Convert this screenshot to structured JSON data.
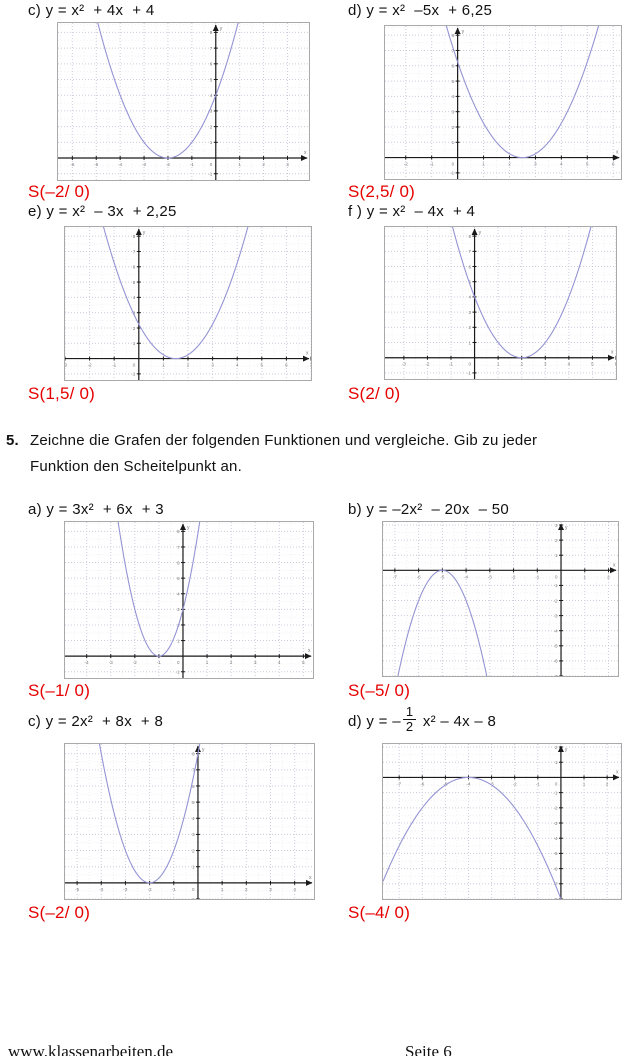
{
  "task5": {
    "number": "5.",
    "line1": "Zeichne die Grafen der folgenden Funktionen und vergleiche. Gib zu jeder",
    "line2": "Funktion den Scheitelpunkt an."
  },
  "footer": {
    "site": "www.klassenarbeiten.de",
    "page": "Seite 6"
  },
  "colors": {
    "curve": "#9494d4",
    "grid": "#ccccdc",
    "subgrid": "#ebebf2",
    "axis": "#1a1a1a",
    "tick_label": "#777777",
    "vertex_red": "#e60000"
  },
  "chart_data": [
    {
      "type": "line",
      "label": "c",
      "title": "c) y = x²  + 4x  + 4",
      "coefficients": {
        "a": 1,
        "b": 4,
        "c": 4
      },
      "vertex": "S(–2/ 0)",
      "vertex_point": [
        -2,
        0
      ],
      "x_range": [
        -6.6,
        3.9
      ],
      "y_range": [
        -1.4,
        8.6
      ],
      "grid": true,
      "axis_labels": [
        "x",
        "y"
      ]
    },
    {
      "type": "line",
      "label": "d",
      "title": "d) y = x²  –5x  + 6,25",
      "coefficients": {
        "a": 1,
        "b": -5,
        "c": 6.25
      },
      "vertex": "S(2,5/ 0)",
      "vertex_point": [
        2.5,
        0
      ],
      "x_range": [
        -2.8,
        6.3
      ],
      "y_range": [
        -1.4,
        8.6
      ],
      "grid": true,
      "axis_labels": [
        "x",
        "y"
      ]
    },
    {
      "type": "line",
      "label": "e",
      "title": "e) y = x²  – 3x  + 2,25",
      "coefficients": {
        "a": 1,
        "b": -3,
        "c": 2.25
      },
      "vertex": "S(1,5/ 0)",
      "vertex_point": [
        1.5,
        0
      ],
      "x_range": [
        -3.0,
        7.0
      ],
      "y_range": [
        -1.4,
        8.6
      ],
      "grid": true,
      "axis_labels": [
        "x",
        "y"
      ]
    },
    {
      "type": "line",
      "label": "f",
      "title": "f ) y = x²  – 4x  + 4",
      "coefficients": {
        "a": 1,
        "b": -4,
        "c": 4
      },
      "vertex": "S(2/ 0)",
      "vertex_point": [
        2,
        0
      ],
      "x_range": [
        -3.8,
        6.0
      ],
      "y_range": [
        -1.4,
        8.6
      ],
      "grid": true,
      "axis_labels": [
        "x",
        "y"
      ]
    },
    {
      "type": "line",
      "label": "a",
      "title": "a) y = 3x²  + 6x  + 3",
      "coefficients": {
        "a": 3,
        "b": 6,
        "c": 3
      },
      "vertex": "S(–1/ 0)",
      "vertex_point": [
        -1,
        0
      ],
      "x_range": [
        -4.9,
        5.4
      ],
      "y_range": [
        -1.4,
        8.6
      ],
      "grid": true,
      "axis_labels": [
        "x",
        "y"
      ]
    },
    {
      "type": "line",
      "label": "b",
      "title": "b) y = –2x²  – 20x  – 50",
      "coefficients": {
        "a": -2,
        "b": -20,
        "c": -50
      },
      "vertex": "S(–5/ 0)",
      "vertex_point": [
        -5,
        0
      ],
      "x_range": [
        -7.5,
        2.4
      ],
      "y_range": [
        -7.0,
        3.2
      ],
      "grid": true,
      "axis_labels": [
        "x",
        "y"
      ]
    },
    {
      "type": "line",
      "label": "c",
      "title": "c) y = 2x²  + 8x  + 8",
      "coefficients": {
        "a": 2,
        "b": 8,
        "c": 8
      },
      "vertex": "S(–2/ 0)",
      "vertex_point": [
        -2,
        0
      ],
      "x_range": [
        -5.5,
        4.8
      ],
      "y_range": [
        -1.0,
        8.6
      ],
      "grid": true,
      "axis_labels": [
        "x",
        "y"
      ]
    },
    {
      "type": "line",
      "label": "d",
      "title_pre": "d) y = –",
      "frac_num": "1",
      "frac_den": "2",
      "title_post": " x² – 4x – 8",
      "coefficients": {
        "a": -0.5,
        "b": -4,
        "c": -8
      },
      "vertex": "S(–4/ 0)",
      "vertex_point": [
        -4,
        0
      ],
      "x_range": [
        -7.7,
        2.6
      ],
      "y_range": [
        -8.0,
        2.2
      ],
      "grid": true,
      "axis_labels": [
        "x",
        "y"
      ]
    }
  ]
}
